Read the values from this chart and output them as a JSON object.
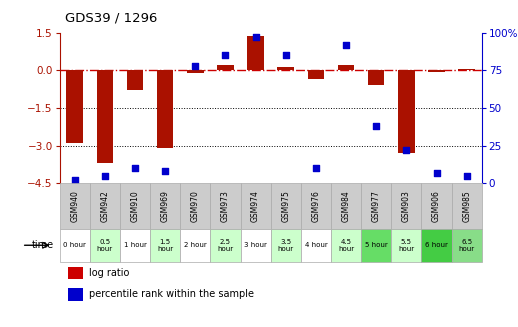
{
  "title": "GDS39 / 1296",
  "samples": [
    "GSM940",
    "GSM942",
    "GSM910",
    "GSM969",
    "GSM970",
    "GSM973",
    "GSM974",
    "GSM975",
    "GSM976",
    "GSM984",
    "GSM977",
    "GSM903",
    "GSM906",
    "GSM985"
  ],
  "time_labels": [
    "0 hour",
    "0.5\nhour",
    "1 hour",
    "1.5\nhour",
    "2 hour",
    "2.5\nhour",
    "3 hour",
    "3.5\nhour",
    "4 hour",
    "4.5\nhour",
    "5 hour",
    "5.5\nhour",
    "6 hour",
    "6.5\nhour"
  ],
  "log_ratio": [
    -2.9,
    -3.7,
    -0.8,
    -3.1,
    -0.1,
    0.2,
    1.35,
    0.15,
    -0.35,
    0.2,
    -0.6,
    -3.3,
    -0.08,
    0.05
  ],
  "percentile": [
    2,
    5,
    10,
    8,
    78,
    85,
    97,
    85,
    10,
    92,
    38,
    22,
    7,
    5
  ],
  "ylim_left": [
    -4.5,
    1.5
  ],
  "ylim_right": [
    0,
    100
  ],
  "yticks_left": [
    1.5,
    0,
    -1.5,
    -3,
    -4.5
  ],
  "yticks_right": [
    100,
    75,
    50,
    25,
    0
  ],
  "bar_color": "#aa1100",
  "dot_color": "#0000cc",
  "zero_line_color": "#cc0000",
  "grid_line_color": "#000000",
  "time_bg_colors": [
    "#ffffff",
    "#ccffcc",
    "#ffffff",
    "#ccffcc",
    "#ffffff",
    "#ccffcc",
    "#ffffff",
    "#ccffcc",
    "#ffffff",
    "#ccffcc",
    "#66dd66",
    "#ccffcc",
    "#44cc44",
    "#88dd88"
  ],
  "sample_bg": "#cccccc",
  "legend_bar_color": "#cc0000",
  "legend_dot_color": "#0000cc"
}
